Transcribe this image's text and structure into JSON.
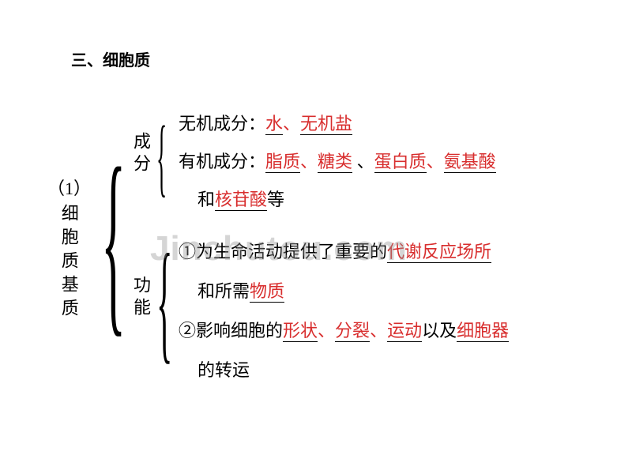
{
  "title": "三、细胞质",
  "leftLabel": {
    "num": "（1）",
    "text": "细胞质基质"
  },
  "midLabels": {
    "chengfen": "成分",
    "gongneng": "功能"
  },
  "lines": {
    "r1_a": "无机成分：",
    "r1_b": "水",
    "r1_c": "、",
    "r1_d": "无机盐",
    "r2_a": "有机成分：",
    "r2_b": "脂质",
    "r2_c": "、",
    "r2_d": "糖类",
    "r2_e": " 、",
    "r2_f": "蛋白质",
    "r2_g": "、",
    "r2_h": "氨基酸",
    "r3_a": "和",
    "r3_b": "核苷酸",
    "r3_c": "等",
    "r4_a": "①为生命活动提供了重要的",
    "r4_b": "代谢反应场所",
    "r5_a": "和所需",
    "r5_b": "物质",
    "r6_a": "②影响细胞的",
    "r6_b": "形状",
    "r6_c": "、",
    "r6_d": "分裂",
    "r6_e": "、",
    "r6_f": "运动",
    "r6_g": "以及",
    "r6_h": "细胞器",
    "r7_a": "的转运"
  },
  "watermark": "Jinchutou.com",
  "colors": {
    "red": "#d82e2e",
    "black": "#000000",
    "bg": "#ffffff"
  }
}
